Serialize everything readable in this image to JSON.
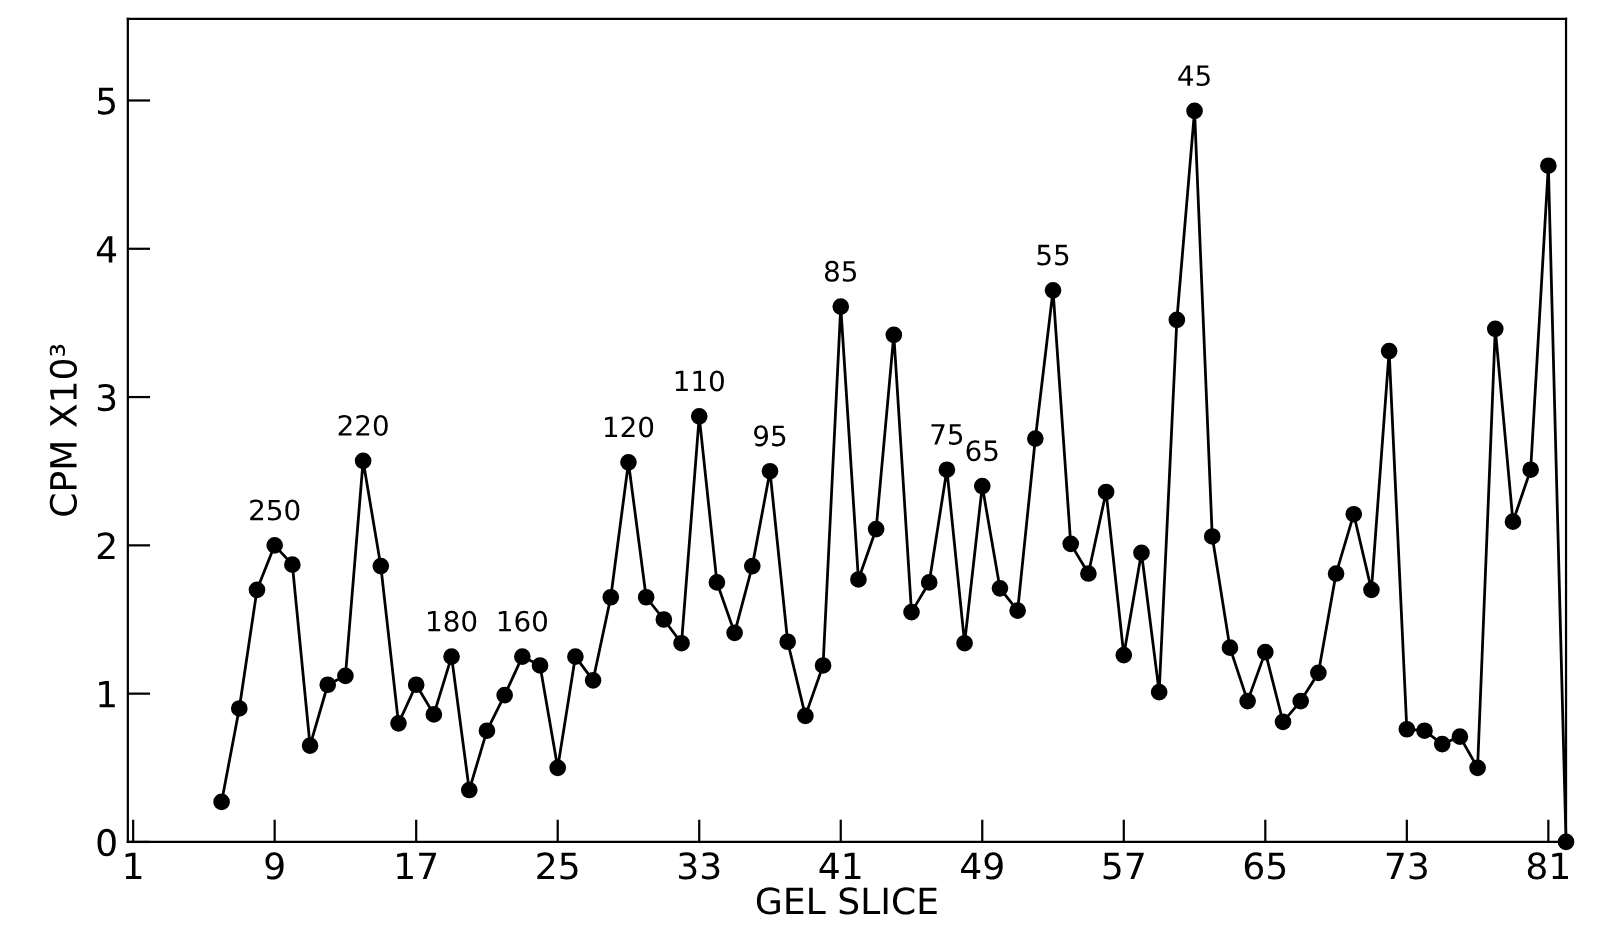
{
  "chart_data": {
    "type": "line",
    "xlabel": "GEL SLICE",
    "ylabel": "CPM X10³",
    "x": [
      6,
      7,
      8,
      9,
      10,
      11,
      12,
      13,
      14,
      15,
      16,
      17,
      18,
      19,
      20,
      21,
      22,
      23,
      24,
      25,
      26,
      27,
      28,
      29,
      30,
      31,
      32,
      33,
      34,
      35,
      36,
      37,
      38,
      39,
      40,
      41,
      42,
      43,
      44,
      45,
      46,
      47,
      48,
      49,
      50,
      51,
      52,
      53,
      54,
      55,
      56,
      57,
      58,
      59,
      60,
      61,
      62,
      63,
      64,
      65,
      66,
      67,
      68,
      69,
      70,
      71,
      72,
      73,
      74,
      75,
      76,
      77,
      78,
      79,
      80,
      81,
      82
    ],
    "series": [
      {
        "color": "#000000",
        "values": [
          0.27,
          0.9,
          1.7,
          2.0,
          1.87,
          0.65,
          1.06,
          1.12,
          2.57,
          1.86,
          0.8,
          1.06,
          0.86,
          1.25,
          0.35,
          0.75,
          0.99,
          1.25,
          1.19,
          0.5,
          1.25,
          1.09,
          1.65,
          2.56,
          1.65,
          1.5,
          1.34,
          2.87,
          1.75,
          1.41,
          1.86,
          2.5,
          1.35,
          0.85,
          1.19,
          3.61,
          1.77,
          2.11,
          3.42,
          1.55,
          1.75,
          2.51,
          1.34,
          2.4,
          1.71,
          1.56,
          2.72,
          3.72,
          2.01,
          1.81,
          2.36,
          1.26,
          1.95,
          1.01,
          3.52,
          4.93,
          2.06,
          1.31,
          0.95,
          1.28,
          0.81,
          0.95,
          1.14,
          1.81,
          2.21,
          1.7,
          3.31,
          0.76,
          0.75,
          0.66,
          0.71,
          0.5,
          3.46,
          2.16,
          2.51,
          4.56,
          0
        ]
      }
    ],
    "xlim": [
      0.7,
      82
    ],
    "ylim": [
      0,
      5.55
    ],
    "xticks": [
      1,
      9,
      17,
      25,
      33,
      41,
      49,
      57,
      65,
      73,
      81
    ],
    "yticks": [
      0,
      1,
      2,
      3,
      4,
      5
    ],
    "marker": "circle",
    "line_style": "solid",
    "grid": false,
    "legend": false,
    "annotations": [
      {
        "text": "250",
        "x": 9,
        "y": 2.0
      },
      {
        "text": "220",
        "x": 14,
        "y": 2.57
      },
      {
        "text": "180",
        "x": 19,
        "y": 1.25
      },
      {
        "text": "160",
        "x": 23,
        "y": 1.25
      },
      {
        "text": "120",
        "x": 29,
        "y": 2.56
      },
      {
        "text": "110",
        "x": 33,
        "y": 2.87
      },
      {
        "text": "95",
        "x": 37,
        "y": 2.5
      },
      {
        "text": "85",
        "x": 41,
        "y": 3.61
      },
      {
        "text": "75",
        "x": 47,
        "y": 2.51
      },
      {
        "text": "65",
        "x": 49,
        "y": 2.4
      },
      {
        "text": "55",
        "x": 53,
        "y": 3.72
      },
      {
        "text": "45",
        "x": 61,
        "y": 4.93
      }
    ]
  }
}
